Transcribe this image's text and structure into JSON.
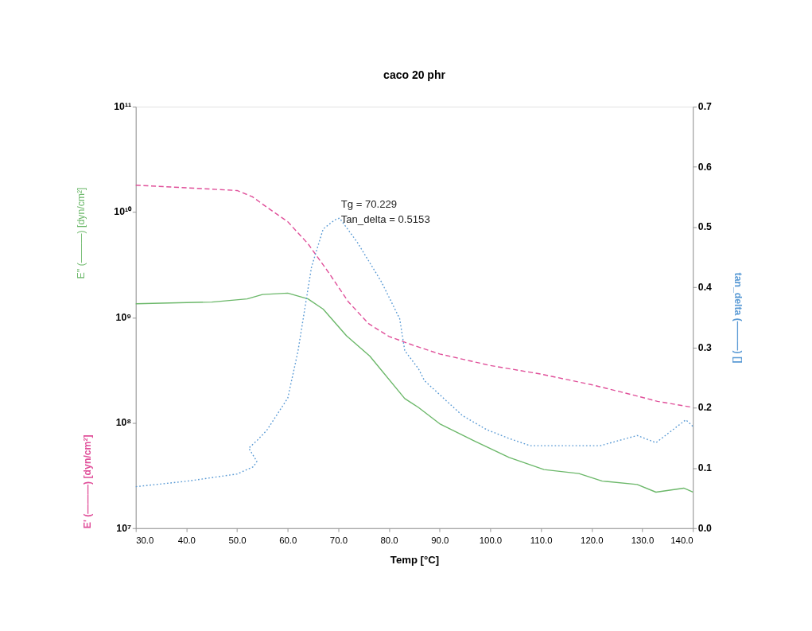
{
  "chart_data": {
    "type": "line",
    "title": "caco 20 phr",
    "xlabel": "Temp [°C]",
    "ylabel": "E' (———) [dyn/cm²]",
    "y2label": "tan_delta (———) []",
    "annotations": [
      "Tg = 70.229",
      "Tan_delta = 0.5153",
      "E'' (———) [dyn/cm²]"
    ],
    "log": "y",
    "grid": false,
    "marker": "none",
    "xlim": [
      30,
      140
    ],
    "xticks": [
      {
        "value": 30,
        "label": "30.0"
      },
      {
        "value": 40,
        "label": "40.0"
      },
      {
        "value": 50,
        "label": "50.0"
      },
      {
        "value": 60,
        "label": "60.0"
      },
      {
        "value": 70,
        "label": "70.0"
      },
      {
        "value": 80,
        "label": "80.0"
      },
      {
        "value": 90,
        "label": "90.0"
      },
      {
        "value": 100,
        "label": "100.0"
      },
      {
        "value": 110,
        "label": "110.0"
      },
      {
        "value": 120,
        "label": "120.0"
      },
      {
        "value": 130,
        "label": "130.0"
      },
      {
        "value": 140,
        "label": "140.0"
      }
    ],
    "ylim": [
      10000000.0,
      100000000000.0
    ],
    "yticks": [
      {
        "value": 10000000.0,
        "label": "10⁷"
      },
      {
        "value": 100000000.0,
        "label": "10⁸"
      },
      {
        "value": 1000000000.0,
        "label": "10⁹"
      },
      {
        "value": 10000000000.0,
        "label": "10¹⁰"
      },
      {
        "value": 100000000000.0,
        "label": "10¹¹"
      }
    ],
    "y2lim": [
      0,
      0.7
    ],
    "y2ticks": [
      {
        "value": 0,
        "label": "0.0"
      },
      0.1,
      0.2,
      0.3,
      0.4,
      0.5,
      0.6,
      0.7
    ],
    "series": [
      {
        "color": "#e0509a",
        "line_style": "dashed",
        "x": [
          30,
          40,
          50,
          53,
          56,
          60,
          64,
          68,
          72,
          76,
          80,
          85,
          90,
          100,
          110,
          120,
          127,
          133,
          140
        ],
        "values": [
          18000000000.0,
          17000000000.0,
          16000000000.0,
          14000000000.0,
          11000000000.0,
          8100000000.0,
          5000000000.0,
          2700000000.0,
          1400000000.0,
          870000000.0,
          660000000.0,
          540000000.0,
          450000000.0,
          350000000.0,
          290000000.0,
          230000000.0,
          190000000.0,
          160000000.0,
          140000000.0
        ]
      },
      {
        "color": "#6cb86a",
        "line_style": "solid",
        "x": [
          30,
          45,
          52,
          55,
          60,
          64,
          67,
          71.6,
          76.2,
          83.1,
          85.8,
          90,
          96.9,
          103.7,
          110.6,
          117.5,
          122.1,
          129,
          132.7,
          138.2,
          140
        ],
        "values": [
          1350000000.0,
          1400000000.0,
          1500000000.0,
          1650000000.0,
          1700000000.0,
          1500000000.0,
          1200000000.0,
          670000000.0,
          430000000.0,
          170000000.0,
          140000000.0,
          98000000.0,
          67000000.0,
          47000000.0,
          36000000.0,
          33000000.0,
          28000000.0,
          26000000.0,
          22000000.0,
          24000000.0,
          22000000.0
        ]
      },
      {
        "color": "#5b9bd5",
        "line_style": "dotted",
        "axis": "y2",
        "x": [
          30,
          40,
          50,
          53.2,
          53.9,
          52.3,
          54.1,
          55.9,
          60,
          62,
          64.7,
          67,
          69.3,
          70.229,
          73.8,
          78.5,
          82.1,
          83.1,
          85.8,
          87,
          94.5,
          99.2,
          103.7,
          107.9,
          114.4,
          121.7,
          129,
          132.7,
          138.6,
          140
        ],
        "values": [
          0.069,
          0.078,
          0.09,
          0.102,
          0.111,
          0.133,
          0.147,
          0.163,
          0.216,
          0.293,
          0.434,
          0.497,
          0.512,
          0.515,
          0.474,
          0.409,
          0.348,
          0.295,
          0.265,
          0.245,
          0.187,
          0.164,
          0.149,
          0.137,
          0.137,
          0.137,
          0.154,
          0.142,
          0.18,
          0.169
        ]
      }
    ]
  }
}
